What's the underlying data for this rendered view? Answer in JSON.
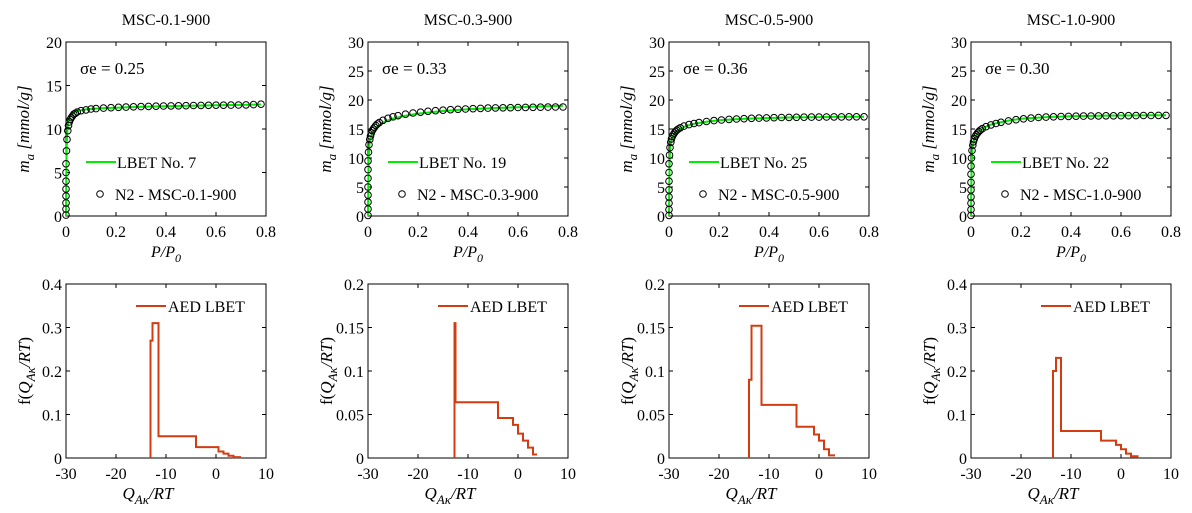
{
  "colors": {
    "fit_line": "#00ee00",
    "sigma_text": "#22e022",
    "aed_line": "#d23c10",
    "points": "#000000"
  },
  "chart_data": [
    {
      "type": "scatter",
      "title": "MSC-0.1-900",
      "xlabel": "P/P0",
      "ylabel": "ma [mmol/g]",
      "xlim": [
        0,
        0.8
      ],
      "ylim": [
        0,
        20
      ],
      "xticks": [
        "0",
        "0.2",
        "0.4",
        "0.6",
        "0.8"
      ],
      "yticks": [
        "0",
        "5",
        "10",
        "15",
        "20"
      ],
      "sigma_label": "σe = 0.25",
      "legend": [
        "LBET No. 7",
        "N2 - MSC-0.1-900"
      ],
      "legend_position": "bottom-right",
      "series": [
        {
          "name": "N2 - MSC-0.1-900",
          "kind": "points",
          "x": [
            0,
            0,
            0,
            0,
            0,
            0,
            0,
            0,
            0.002,
            0.004,
            0.007,
            0.01,
            0.013,
            0.017,
            0.021,
            0.026,
            0.031,
            0.037,
            0.045,
            0.06,
            0.08,
            0.1,
            0.12,
            0.15,
            0.18,
            0.21,
            0.24,
            0.27,
            0.3,
            0.33,
            0.36,
            0.39,
            0.42,
            0.45,
            0.48,
            0.51,
            0.54,
            0.57,
            0.6,
            0.63,
            0.66,
            0.69,
            0.72,
            0.75,
            0.78
          ],
          "y": [
            0.1,
            0.8,
            1.5,
            2.3,
            3.1,
            4.0,
            5.0,
            6.0,
            7.5,
            8.8,
            9.8,
            10.4,
            10.8,
            11.1,
            11.3,
            11.5,
            11.7,
            11.8,
            11.95,
            12.1,
            12.2,
            12.3,
            12.35,
            12.4,
            12.45,
            12.5,
            12.52,
            12.55,
            12.58,
            12.6,
            12.62,
            12.64,
            12.65,
            12.67,
            12.68,
            12.7,
            12.71,
            12.72,
            12.73,
            12.74,
            12.75,
            12.76,
            12.77,
            12.8,
            12.85
          ]
        },
        {
          "name": "LBET No. 7",
          "kind": "line",
          "x": [
            0,
            0.001,
            0.003,
            0.006,
            0.01,
            0.015,
            0.02,
            0.03,
            0.04,
            0.06,
            0.08,
            0.1,
            0.15,
            0.2,
            0.3,
            0.4,
            0.5,
            0.6,
            0.7,
            0.78
          ],
          "y": [
            0,
            5,
            8.5,
            10.2,
            10.9,
            11.3,
            11.55,
            11.85,
            12.0,
            12.15,
            12.25,
            12.3,
            12.4,
            12.45,
            12.55,
            12.62,
            12.67,
            12.72,
            12.77,
            12.82
          ]
        }
      ]
    },
    {
      "type": "scatter",
      "title": "MSC-0.3-900",
      "xlabel": "P/P0",
      "ylabel": "ma [mmol/g]",
      "xlim": [
        0,
        0.8
      ],
      "ylim": [
        0,
        30
      ],
      "xticks": [
        "0",
        "0.2",
        "0.4",
        "0.6",
        "0.8"
      ],
      "yticks": [
        "0",
        "5",
        "10",
        "15",
        "20",
        "25",
        "30"
      ],
      "sigma_label": "σe = 0.33",
      "legend": [
        "LBET No. 19",
        "N2 - MSC-0.3-900"
      ],
      "legend_position": "bottom-right",
      "series": [
        {
          "name": "N2 - MSC-0.3-900",
          "kind": "points",
          "x": [
            0,
            0,
            0,
            0,
            0,
            0,
            0,
            0,
            0.002,
            0.004,
            0.007,
            0.01,
            0.013,
            0.017,
            0.021,
            0.026,
            0.031,
            0.037,
            0.045,
            0.06,
            0.08,
            0.1,
            0.12,
            0.15,
            0.18,
            0.21,
            0.24,
            0.27,
            0.3,
            0.33,
            0.36,
            0.39,
            0.42,
            0.45,
            0.48,
            0.51,
            0.54,
            0.57,
            0.6,
            0.63,
            0.66,
            0.69,
            0.72,
            0.75,
            0.78
          ],
          "y": [
            0.1,
            1.2,
            2.4,
            3.6,
            5.0,
            6.5,
            8.0,
            9.5,
            11.0,
            12.3,
            13.2,
            13.8,
            14.3,
            14.7,
            15.0,
            15.3,
            15.6,
            15.85,
            16.1,
            16.5,
            16.85,
            17.1,
            17.3,
            17.55,
            17.75,
            17.9,
            18.05,
            18.15,
            18.25,
            18.32,
            18.4,
            18.45,
            18.5,
            18.55,
            18.6,
            18.63,
            18.66,
            18.68,
            18.7,
            18.72,
            18.74,
            18.76,
            18.78,
            18.8,
            18.8
          ]
        },
        {
          "name": "LBET No. 19",
          "kind": "line",
          "x": [
            0,
            0.001,
            0.003,
            0.006,
            0.01,
            0.015,
            0.02,
            0.03,
            0.04,
            0.06,
            0.08,
            0.1,
            0.15,
            0.2,
            0.3,
            0.4,
            0.5,
            0.6,
            0.7,
            0.78
          ],
          "y": [
            0,
            6,
            10.5,
            12.5,
            13.5,
            14.1,
            14.5,
            15.1,
            15.5,
            16.1,
            16.5,
            16.8,
            17.3,
            17.65,
            18.1,
            18.4,
            18.6,
            18.75,
            18.9,
            19.0
          ]
        }
      ]
    },
    {
      "type": "scatter",
      "title": "MSC-0.5-900",
      "xlabel": "P/P0",
      "ylabel": "ma [mmol/g]",
      "xlim": [
        0,
        0.8
      ],
      "ylim": [
        0,
        30
      ],
      "xticks": [
        "0",
        "0.2",
        "0.4",
        "0.6",
        "0.8"
      ],
      "yticks": [
        "0",
        "5",
        "10",
        "15",
        "20",
        "25",
        "30"
      ],
      "sigma_label": "σe = 0.36",
      "legend": [
        "LBET No. 25",
        "N2 - MSC-0.5-900"
      ],
      "legend_position": "bottom-right",
      "series": [
        {
          "name": "N2 - MSC-0.5-900",
          "kind": "points",
          "x": [
            0,
            0,
            0,
            0,
            0,
            0,
            0,
            0,
            0.002,
            0.004,
            0.007,
            0.01,
            0.013,
            0.017,
            0.021,
            0.026,
            0.031,
            0.037,
            0.045,
            0.06,
            0.08,
            0.1,
            0.12,
            0.15,
            0.18,
            0.21,
            0.24,
            0.27,
            0.3,
            0.33,
            0.36,
            0.39,
            0.42,
            0.45,
            0.48,
            0.51,
            0.54,
            0.57,
            0.6,
            0.63,
            0.66,
            0.69,
            0.72,
            0.75,
            0.78
          ],
          "y": [
            0.1,
            1.1,
            2.2,
            3.3,
            4.5,
            6.0,
            7.5,
            9.0,
            10.5,
            11.8,
            12.7,
            13.3,
            13.7,
            14.0,
            14.3,
            14.55,
            14.8,
            15.0,
            15.2,
            15.5,
            15.75,
            15.95,
            16.1,
            16.3,
            16.45,
            16.55,
            16.65,
            16.72,
            16.78,
            16.84,
            16.88,
            16.92,
            16.95,
            16.98,
            17.0,
            17.02,
            17.04,
            17.05,
            17.06,
            17.07,
            17.08,
            17.09,
            17.1,
            17.1,
            17.1
          ]
        },
        {
          "name": "LBET No. 25",
          "kind": "line",
          "x": [
            0,
            0.001,
            0.003,
            0.006,
            0.01,
            0.015,
            0.02,
            0.03,
            0.04,
            0.06,
            0.08,
            0.1,
            0.15,
            0.2,
            0.3,
            0.4,
            0.5,
            0.6,
            0.7,
            0.78
          ],
          "y": [
            0,
            6,
            10.5,
            12.3,
            13.2,
            13.7,
            14.05,
            14.55,
            14.9,
            15.35,
            15.65,
            15.9,
            16.25,
            16.5,
            16.75,
            16.9,
            17.0,
            17.05,
            17.1,
            17.12
          ]
        }
      ]
    },
    {
      "type": "scatter",
      "title": "MSC-1.0-900",
      "xlabel": "P/P0",
      "ylabel": "ma [mmol/g]",
      "xlim": [
        0,
        0.8
      ],
      "ylim": [
        0,
        30
      ],
      "xticks": [
        "0",
        "0.2",
        "0.4",
        "0.6",
        "0.8"
      ],
      "yticks": [
        "0",
        "5",
        "10",
        "15",
        "20",
        "25",
        "30"
      ],
      "sigma_label": "σe = 0.30",
      "legend": [
        "LBET No. 22",
        "N2 - MSC-1.0-900"
      ],
      "legend_position": "bottom-right",
      "series": [
        {
          "name": "N2 - MSC-1.0-900",
          "kind": "points",
          "x": [
            0,
            0,
            0,
            0,
            0,
            0,
            0,
            0,
            0.002,
            0.004,
            0.007,
            0.01,
            0.013,
            0.017,
            0.021,
            0.026,
            0.031,
            0.037,
            0.045,
            0.06,
            0.08,
            0.1,
            0.12,
            0.15,
            0.18,
            0.21,
            0.24,
            0.27,
            0.3,
            0.33,
            0.36,
            0.39,
            0.42,
            0.45,
            0.48,
            0.51,
            0.54,
            0.57,
            0.6,
            0.63,
            0.66,
            0.69,
            0.72,
            0.75,
            0.78
          ],
          "y": [
            0.1,
            1.1,
            2.2,
            3.3,
            4.5,
            5.8,
            7.2,
            8.6,
            10.0,
            11.3,
            12.2,
            12.8,
            13.3,
            13.7,
            14.0,
            14.3,
            14.55,
            14.8,
            15.05,
            15.4,
            15.7,
            15.95,
            16.15,
            16.4,
            16.6,
            16.75,
            16.88,
            16.98,
            17.05,
            17.1,
            17.15,
            17.18,
            17.2,
            17.22,
            17.24,
            17.26,
            17.27,
            17.28,
            17.29,
            17.3,
            17.31,
            17.32,
            17.33,
            17.34,
            17.35
          ]
        },
        {
          "name": "LBET No. 22",
          "kind": "line",
          "x": [
            0,
            0.001,
            0.003,
            0.006,
            0.01,
            0.015,
            0.02,
            0.03,
            0.04,
            0.06,
            0.08,
            0.1,
            0.15,
            0.2,
            0.3,
            0.4,
            0.5,
            0.6,
            0.7,
            0.78
          ],
          "y": [
            0,
            5.5,
            9.8,
            11.8,
            12.8,
            13.4,
            13.85,
            14.45,
            14.85,
            15.4,
            15.75,
            16.0,
            16.45,
            16.75,
            17.05,
            17.2,
            17.28,
            17.32,
            17.36,
            17.38
          ]
        }
      ]
    },
    {
      "type": "line",
      "step": true,
      "xlabel": "QAκ/RT",
      "ylabel": "f(QAκ/RT)",
      "xlim": [
        -30,
        10
      ],
      "ylim": [
        0,
        0.4
      ],
      "xticks": [
        "-30",
        "-20",
        "-10",
        "0",
        "10"
      ],
      "yticks": [
        "0",
        "0.1",
        "0.2",
        "0.3",
        "0.4"
      ],
      "legend": [
        "AED LBET"
      ],
      "legend_position": "top-right",
      "series": [
        {
          "name": "AED LBET",
          "x": [
            -13.1,
            -13.1,
            -12.7,
            -12.7,
            -11.5,
            -11.5,
            -4.0,
            -4.0,
            0.5,
            0.5,
            1.5,
            1.5,
            2.5,
            2.5,
            3.5,
            3.5,
            5.0
          ],
          "y": [
            0,
            0.27,
            0.27,
            0.31,
            0.31,
            0.05,
            0.05,
            0.025,
            0.025,
            0.015,
            0.015,
            0.01,
            0.01,
            0.005,
            0.005,
            0.002,
            0.002
          ]
        }
      ]
    },
    {
      "type": "line",
      "step": true,
      "xlabel": "QAκ/RT",
      "ylabel": "f(QAκ/RT)",
      "xlim": [
        -30,
        10
      ],
      "ylim": [
        0,
        0.2
      ],
      "xticks": [
        "-30",
        "-20",
        "-10",
        "0",
        "10"
      ],
      "yticks": [
        "0",
        "0.05",
        "0.1",
        "0.15",
        "0.2"
      ],
      "legend": [
        "AED LBET"
      ],
      "legend_position": "top-right",
      "series": [
        {
          "name": "AED LBET",
          "x": [
            -12.7,
            -12.7,
            -12.5,
            -12.5,
            -4.0,
            -4.0,
            -1.0,
            -1.0,
            0.0,
            0.0,
            1.0,
            1.0,
            2.0,
            2.0,
            3.0,
            3.0,
            3.8
          ],
          "y": [
            0,
            0.155,
            0.155,
            0.064,
            0.064,
            0.046,
            0.046,
            0.038,
            0.038,
            0.028,
            0.028,
            0.02,
            0.02,
            0.012,
            0.012,
            0.004,
            0.004
          ]
        }
      ]
    },
    {
      "type": "line",
      "step": true,
      "xlabel": "QAκ/RT",
      "ylabel": "f(QAκ/RT)",
      "xlim": [
        -30,
        10
      ],
      "ylim": [
        0,
        0.2
      ],
      "xticks": [
        "-30",
        "-20",
        "-10",
        "0",
        "10"
      ],
      "yticks": [
        "0",
        "0.05",
        "0.1",
        "0.15",
        "0.2"
      ],
      "legend": [
        "AED LBET"
      ],
      "legend_position": "top-right",
      "series": [
        {
          "name": "AED LBET",
          "x": [
            -14.0,
            -14.0,
            -13.5,
            -13.5,
            -11.5,
            -11.5,
            -4.5,
            -4.5,
            -1.0,
            -1.0,
            0.0,
            0.0,
            1.0,
            1.0,
            2.0,
            2.0,
            3.2
          ],
          "y": [
            0,
            0.09,
            0.09,
            0.152,
            0.152,
            0.061,
            0.061,
            0.036,
            0.036,
            0.027,
            0.027,
            0.02,
            0.02,
            0.01,
            0.01,
            0.003,
            0.003
          ]
        }
      ]
    },
    {
      "type": "line",
      "step": true,
      "xlabel": "QAκ/RT",
      "ylabel": "f(QAκ/RT)",
      "xlim": [
        -30,
        10
      ],
      "ylim": [
        0,
        0.4
      ],
      "xticks": [
        "-30",
        "-20",
        "-10",
        "0",
        "10"
      ],
      "yticks": [
        "0",
        "0.1",
        "0.2",
        "0.3",
        "0.4"
      ],
      "legend": [
        "AED LBET"
      ],
      "legend_position": "top-right",
      "series": [
        {
          "name": "AED LBET",
          "x": [
            -13.6,
            -13.6,
            -13.0,
            -13.0,
            -12.0,
            -12.0,
            -4.0,
            -4.0,
            -1.0,
            -1.0,
            0.0,
            0.0,
            1.0,
            1.0,
            2.0,
            2.0,
            3.5
          ],
          "y": [
            0,
            0.2,
            0.2,
            0.23,
            0.23,
            0.062,
            0.062,
            0.04,
            0.04,
            0.03,
            0.03,
            0.02,
            0.02,
            0.01,
            0.01,
            0.004,
            0.004
          ]
        }
      ]
    }
  ]
}
